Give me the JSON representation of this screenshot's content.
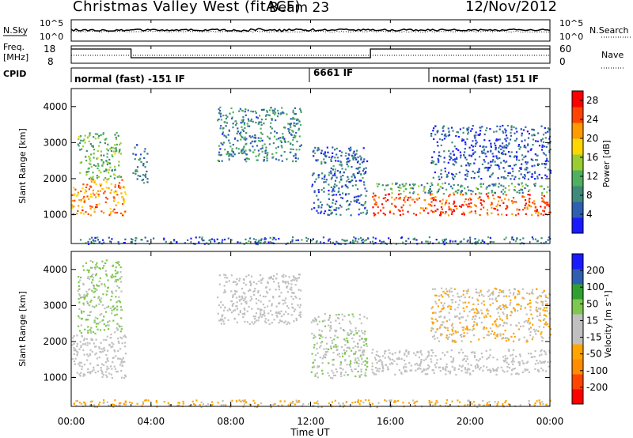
{
  "header": {
    "title": "Christmas Valley West (fitACF)",
    "beam": "Beam 23",
    "date": "12/Nov/2012"
  },
  "noise_panel": {
    "left_label": "N.Sky",
    "right_label": "N.Search",
    "left_ticks": [
      "10^5",
      "10^0"
    ],
    "right_ticks": [
      "10^5",
      "10^0"
    ]
  },
  "freq_panel": {
    "left_label_1": "Freq.",
    "left_label_2": "[MHz]",
    "right_label": "Nave",
    "left_ticks": [
      "18",
      "8"
    ],
    "right_ticks": [
      "60",
      "0"
    ]
  },
  "cpid": {
    "label": "CPID",
    "segments": [
      {
        "label": "normal (fast) -151 IF",
        "start_hour": 0
      },
      {
        "label": "6661 IF",
        "start_hour": 12
      },
      {
        "label": "normal (fast) 151 IF",
        "start_hour": 18
      }
    ]
  },
  "chart_data": [
    {
      "type": "heatmap",
      "title": "",
      "xlabel": "Time UT",
      "ylabel": "Slant Range [km]",
      "xlim": [
        0,
        24
      ],
      "ylim": [
        200,
        4500
      ],
      "x_ticks": [
        "00:00",
        "04:00",
        "08:00",
        "12:00",
        "16:00",
        "20:00",
        "00:00"
      ],
      "y_ticks": [
        1000,
        2000,
        3000,
        4000
      ],
      "colorbar": {
        "label": "Power [dB]",
        "ticks": [
          4,
          8,
          12,
          16,
          20,
          24,
          28
        ],
        "range": [
          0,
          30
        ],
        "colors": [
          "#1a1aff",
          "#2e5fb0",
          "#3f8a7a",
          "#4fb060",
          "#9acd32",
          "#ffd700",
          "#ff9a00",
          "#ff4500",
          "#ff0000"
        ]
      },
      "echo_regions": [
        {
          "t0": 0.0,
          "t1": 2.7,
          "r0": 1000,
          "r1": 2000,
          "level": 22
        },
        {
          "t0": 0.3,
          "t1": 2.5,
          "r0": 2000,
          "r1": 3300,
          "level": 12
        },
        {
          "t0": 3.0,
          "t1": 3.8,
          "r0": 1900,
          "r1": 3000,
          "level": 8
        },
        {
          "t0": 7.3,
          "t1": 11.5,
          "r0": 2500,
          "r1": 4000,
          "level": 8
        },
        {
          "t0": 12.0,
          "t1": 14.8,
          "r0": 1000,
          "r1": 2900,
          "level": 6
        },
        {
          "t0": 15.0,
          "t1": 24.0,
          "r0": 1000,
          "r1": 1600,
          "level": 26
        },
        {
          "t0": 15.0,
          "t1": 24.0,
          "r0": 1600,
          "r1": 1900,
          "level": 10
        },
        {
          "t0": 18.0,
          "t1": 24.0,
          "r0": 2000,
          "r1": 3500,
          "level": 5
        },
        {
          "t0": 0.0,
          "t1": 24.0,
          "r0": 200,
          "r1": 400,
          "level": 6
        }
      ]
    },
    {
      "type": "heatmap",
      "title": "",
      "xlabel": "Time UT",
      "ylabel": "Slant Range [km]",
      "xlim": [
        0,
        24
      ],
      "ylim": [
        200,
        4500
      ],
      "x_ticks": [
        "00:00",
        "04:00",
        "08:00",
        "12:00",
        "16:00",
        "20:00",
        "00:00"
      ],
      "y_ticks": [
        1000,
        2000,
        3000,
        4000
      ],
      "colorbar": {
        "label": "Velocity [m s⁻¹]",
        "ticks": [
          200,
          100,
          50,
          15,
          -15,
          -50,
          -100,
          -200
        ],
        "range": [
          -250,
          250
        ],
        "colors": [
          "#ff0000",
          "#ff4500",
          "#ff8c00",
          "#ffa500",
          "#c0c0c0",
          "#c0c0c0",
          "#7ec850",
          "#2fa02f",
          "#2e5fb0",
          "#1a1aff"
        ]
      },
      "echo_regions": [
        {
          "t0": 0.0,
          "t1": 2.7,
          "r0": 1000,
          "r1": 2200,
          "value": 0
        },
        {
          "t0": 0.3,
          "t1": 2.5,
          "r0": 2200,
          "r1": 4300,
          "value": 60
        },
        {
          "t0": 7.3,
          "t1": 11.5,
          "r0": 2500,
          "r1": 3900,
          "value": 0
        },
        {
          "t0": 12.0,
          "t1": 14.8,
          "r0": 1000,
          "r1": 2800,
          "value": 40
        },
        {
          "t0": 15.0,
          "t1": 24.0,
          "r0": 1100,
          "r1": 1800,
          "value": 0
        },
        {
          "t0": 18.0,
          "t1": 24.0,
          "r0": 2000,
          "r1": 3500,
          "value": -50
        },
        {
          "t0": 0.0,
          "t1": 24.0,
          "r0": 200,
          "r1": 400,
          "value": -60
        }
      ]
    }
  ]
}
